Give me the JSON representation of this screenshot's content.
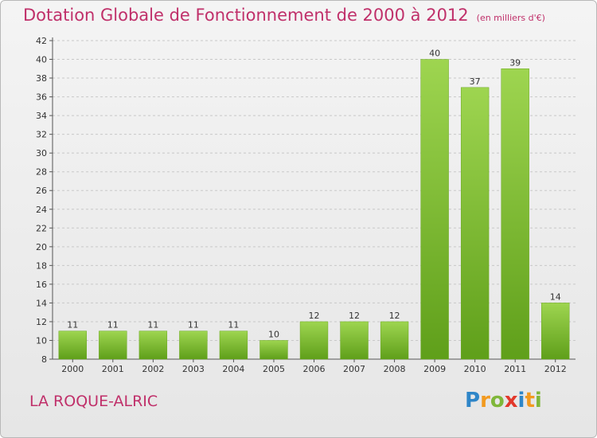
{
  "chart_data": {
    "type": "bar",
    "title": "Dotation Globale de Fonctionnement de 2000 à 2012",
    "subtitle": "(en milliers d'€)",
    "categories": [
      "2000",
      "2001",
      "2002",
      "2003",
      "2004",
      "2005",
      "2006",
      "2007",
      "2008",
      "2009",
      "2010",
      "2011",
      "2012"
    ],
    "values": [
      11,
      11,
      11,
      11,
      11,
      10,
      12,
      12,
      12,
      40,
      37,
      39,
      14
    ],
    "xlabel": "",
    "ylabel": "",
    "ylim": [
      8,
      42
    ],
    "yticks": [
      8,
      10,
      12,
      14,
      16,
      18,
      20,
      22,
      24,
      26,
      28,
      30,
      32,
      34,
      36,
      38,
      40,
      42
    ],
    "grid": "horizontal dashed",
    "bar_color": "#7cc132"
  },
  "footer": {
    "commune": "LA ROQUE-ALRIC",
    "logo": [
      "P",
      "r",
      "o",
      "x",
      "i",
      "t",
      "i"
    ]
  }
}
